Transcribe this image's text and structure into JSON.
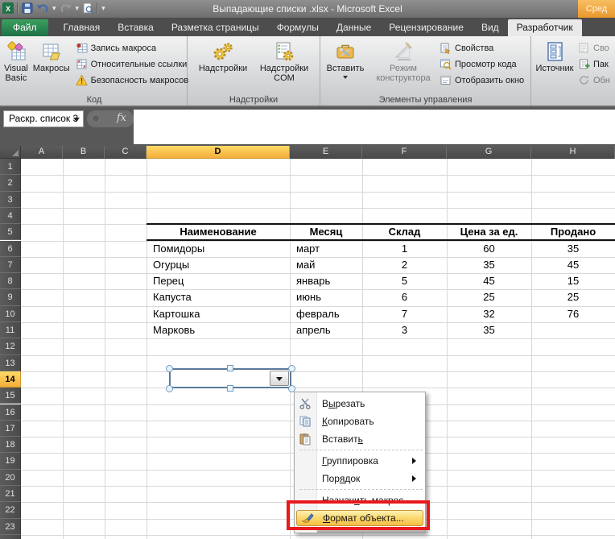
{
  "titlebar": {
    "title": "Выпадающие списки .xlsx  -  Microsoft Excel",
    "contextual_tab_label": "Сред",
    "qat_icons": [
      "excel-logo",
      "save",
      "undo",
      "redo",
      "print-preview",
      "customize-toolbar"
    ]
  },
  "tabs": [
    {
      "label": "Файл",
      "type": "file"
    },
    {
      "label": "Главная"
    },
    {
      "label": "Вставка"
    },
    {
      "label": "Разметка страницы"
    },
    {
      "label": "Формулы"
    },
    {
      "label": "Данные"
    },
    {
      "label": "Рецензирование"
    },
    {
      "label": "Вид"
    },
    {
      "label": "Разработчик",
      "active": true
    }
  ],
  "ribbon": {
    "groups": [
      {
        "label": "Код",
        "buttons_big": [
          {
            "label": "Visual Basic"
          },
          {
            "label": "Макросы"
          }
        ],
        "buttons_small": [
          {
            "label": "Запись макроса"
          },
          {
            "label": "Относительные ссылки"
          },
          {
            "label": "Безопасность макросов"
          }
        ]
      },
      {
        "label": "Надстройки",
        "buttons_big": [
          {
            "label": "Надстройки"
          },
          {
            "label": "Надстройки COM"
          }
        ],
        "buttons_small": []
      },
      {
        "label": "Элементы управления",
        "buttons_big": [
          {
            "label": "Вставить",
            "dropdown": true
          },
          {
            "label": "Режим конструктора",
            "disabled": true
          }
        ],
        "buttons_small": [
          {
            "label": "Свойства"
          },
          {
            "label": "Просмотр кода"
          },
          {
            "label": "Отобразить окно"
          }
        ]
      },
      {
        "label": "",
        "buttons_big": [
          {
            "label": "Источник"
          }
        ],
        "buttons_small": [
          {
            "label": "Сво",
            "disabled": true
          },
          {
            "label": "Пак"
          },
          {
            "label": "Обн",
            "disabled": true
          }
        ]
      }
    ]
  },
  "formula_bar": {
    "name_box_value": "Раскр. список 3",
    "fx_label": "fx"
  },
  "sheet": {
    "column_headers": [
      "A",
      "B",
      "C",
      "D",
      "E",
      "F",
      "G",
      "H"
    ],
    "selected_column": "D",
    "selected_row": 14,
    "first_row": 1,
    "last_row": 23
  },
  "table": {
    "headers": [
      "Наименование",
      "Месяц",
      "Склад",
      "Цена за ед.",
      "Продано"
    ],
    "rows": [
      [
        "Помидоры",
        "март",
        "1",
        "60",
        "35"
      ],
      [
        "Огурцы",
        "май",
        "2",
        "35",
        "45"
      ],
      [
        "Перец",
        "январь",
        "5",
        "45",
        "15"
      ],
      [
        "Капуста",
        "июнь",
        "6",
        "25",
        "25"
      ],
      [
        "Картошка",
        "февраль",
        "7",
        "32",
        "76"
      ],
      [
        "Марковь",
        "апрель",
        "3",
        "35",
        ""
      ]
    ]
  },
  "combo_box": {
    "selected": true,
    "dropdown_icon": "chevron-down-icon"
  },
  "context_menu": {
    "items": [
      {
        "id": "cut",
        "icon": "scissors-icon",
        "pre": "В",
        "key": "ы",
        "post": "резать"
      },
      {
        "id": "copy",
        "icon": "copy-icon",
        "pre": "",
        "key": "К",
        "post": "опировать"
      },
      {
        "id": "paste",
        "icon": "paste-icon",
        "pre": "Вставит",
        "key": "ь",
        "post": ""
      },
      {
        "id": "sep1",
        "separator": true
      },
      {
        "id": "grouping",
        "submenu": true,
        "pre": "",
        "key": "Г",
        "post": "руппировка"
      },
      {
        "id": "order",
        "submenu": true,
        "pre": "Пор",
        "key": "я",
        "post": "док"
      },
      {
        "id": "sep2",
        "separator": true
      },
      {
        "id": "assign-macro",
        "pre": "Назнач",
        "key": "и",
        "post": "ть макрос..."
      },
      {
        "id": "format-object",
        "icon": "format-object-icon",
        "highlight": true,
        "pre": "",
        "key": "Ф",
        "post": "ормат объекта..."
      }
    ]
  },
  "colors": {
    "selection_gold": "#F4AD3C",
    "file_tab_green": "#1E7145",
    "contextual_tab_orange": "#E9982C",
    "menu_highlight": "#F4BD44",
    "annotation_red": "#E8191C"
  }
}
